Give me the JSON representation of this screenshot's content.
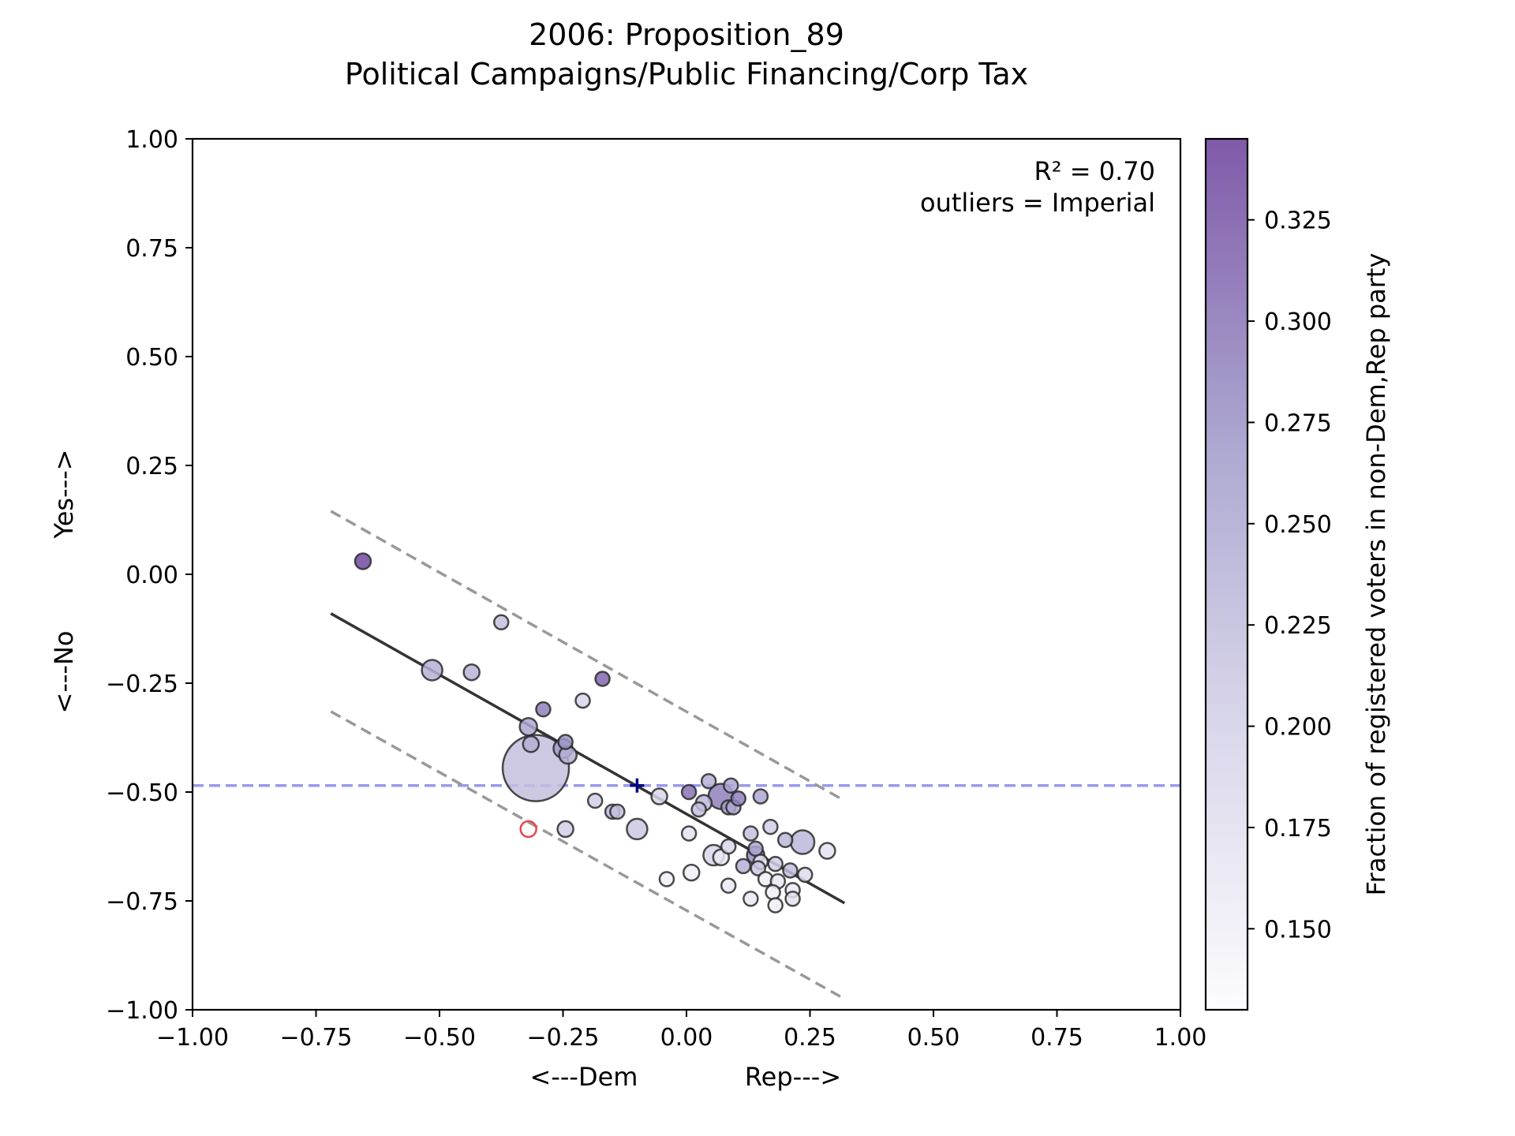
{
  "chart_data": {
    "type": "scatter",
    "title": "2006: Proposition_89",
    "subtitle": "Political Campaigns/Public Financing/Corp Tax",
    "xlabel_left": "<---Dem",
    "xlabel_right": "Rep--->",
    "ylabel_bottom": "<---No",
    "ylabel_top": "Yes--->",
    "xlim": [
      -1.0,
      1.0
    ],
    "ylim": [
      -1.0,
      1.0
    ],
    "xticks": [
      -1.0,
      -0.75,
      -0.5,
      -0.25,
      0.0,
      0.25,
      0.5,
      0.75,
      1.0
    ],
    "yticks": [
      -1.0,
      -0.75,
      -0.5,
      -0.25,
      0.0,
      0.25,
      0.5,
      0.75,
      1.0
    ],
    "xtick_labels": [
      "−1.00",
      "−0.75",
      "−0.50",
      "−0.25",
      "0.00",
      "0.25",
      "0.50",
      "0.75",
      "1.00"
    ],
    "ytick_labels": [
      "−1.00",
      "−0.75",
      "−0.50",
      "−0.25",
      "0.00",
      "0.25",
      "0.50",
      "0.75",
      "1.00"
    ],
    "annotation_r2": "R² = 0.70",
    "annotation_outliers": "outliers = Imperial",
    "colorbar": {
      "label": "Fraction of registered voters in non-Dem,Rep party",
      "range": [
        0.13,
        0.345
      ],
      "ticks": [
        0.15,
        0.175,
        0.2,
        0.225,
        0.25,
        0.275,
        0.3,
        0.325
      ],
      "tick_labels": [
        "0.150",
        "0.175",
        "0.200",
        "0.225",
        "0.250",
        "0.275",
        "0.300",
        "0.325"
      ],
      "color_low": "#fcfbfd",
      "color_high": "#6a3d9a"
    },
    "reference_line_y": -0.485,
    "reference_line_color": "#9999ee",
    "fit_line": {
      "x": [
        -0.72,
        0.32
      ],
      "y": [
        -0.09,
        -0.755
      ],
      "color": "#333333"
    },
    "upper_band": {
      "x": [
        -0.72,
        0.32
      ],
      "y": [
        0.145,
        -0.52
      ],
      "color": "#999999"
    },
    "lower_band": {
      "x": [
        -0.72,
        0.32
      ],
      "y": [
        -0.315,
        -0.975
      ],
      "color": "#999999"
    },
    "mean_marker": {
      "x": -0.1,
      "y": -0.485,
      "color": "#00008b"
    },
    "outliers": [
      {
        "x": -0.32,
        "y": -0.585,
        "color": "#e8474c"
      }
    ],
    "points": [
      {
        "x": -0.655,
        "y": 0.03,
        "size": 10,
        "c": 0.335
      },
      {
        "x": -0.375,
        "y": -0.11,
        "size": 9,
        "c": 0.22
      },
      {
        "x": -0.515,
        "y": -0.22,
        "size": 13,
        "c": 0.24
      },
      {
        "x": -0.435,
        "y": -0.225,
        "size": 10,
        "c": 0.235
      },
      {
        "x": -0.17,
        "y": -0.24,
        "size": 9,
        "c": 0.31
      },
      {
        "x": -0.21,
        "y": -0.29,
        "size": 9,
        "c": 0.19
      },
      {
        "x": -0.29,
        "y": -0.31,
        "size": 9,
        "c": 0.29
      },
      {
        "x": -0.32,
        "y": -0.35,
        "size": 11,
        "c": 0.25
      },
      {
        "x": -0.315,
        "y": -0.39,
        "size": 10,
        "c": 0.24
      },
      {
        "x": -0.245,
        "y": -0.385,
        "size": 9,
        "c": 0.27
      },
      {
        "x": -0.25,
        "y": -0.4,
        "size": 12,
        "c": 0.265
      },
      {
        "x": -0.24,
        "y": -0.415,
        "size": 11,
        "c": 0.24
      },
      {
        "x": -0.305,
        "y": -0.445,
        "size": 42,
        "c": 0.22
      },
      {
        "x": -0.185,
        "y": -0.52,
        "size": 9,
        "c": 0.2
      },
      {
        "x": -0.15,
        "y": -0.545,
        "size": 9,
        "c": 0.23
      },
      {
        "x": -0.14,
        "y": -0.545,
        "size": 9,
        "c": 0.22
      },
      {
        "x": -0.245,
        "y": -0.585,
        "size": 10,
        "c": 0.2
      },
      {
        "x": -0.1,
        "y": -0.585,
        "size": 13,
        "c": 0.21
      },
      {
        "x": -0.055,
        "y": -0.51,
        "size": 10,
        "c": 0.19
      },
      {
        "x": 0.005,
        "y": -0.5,
        "size": 9,
        "c": 0.3
      },
      {
        "x": 0.045,
        "y": -0.475,
        "size": 9,
        "c": 0.24
      },
      {
        "x": 0.025,
        "y": -0.54,
        "size": 9,
        "c": 0.22
      },
      {
        "x": 0.035,
        "y": -0.525,
        "size": 10,
        "c": 0.23
      },
      {
        "x": 0.07,
        "y": -0.51,
        "size": 16,
        "c": 0.29
      },
      {
        "x": 0.09,
        "y": -0.485,
        "size": 9,
        "c": 0.25
      },
      {
        "x": 0.085,
        "y": -0.535,
        "size": 9,
        "c": 0.26
      },
      {
        "x": 0.095,
        "y": -0.535,
        "size": 9,
        "c": 0.25
      },
      {
        "x": 0.105,
        "y": -0.515,
        "size": 9,
        "c": 0.29
      },
      {
        "x": 0.15,
        "y": -0.51,
        "size": 9,
        "c": 0.25
      },
      {
        "x": 0.005,
        "y": -0.595,
        "size": 9,
        "c": 0.17
      },
      {
        "x": 0.085,
        "y": -0.625,
        "size": 9,
        "c": 0.19
      },
      {
        "x": 0.055,
        "y": -0.645,
        "size": 13,
        "c": 0.19
      },
      {
        "x": 0.07,
        "y": -0.65,
        "size": 10,
        "c": 0.16
      },
      {
        "x": 0.13,
        "y": -0.595,
        "size": 9,
        "c": 0.22
      },
      {
        "x": 0.14,
        "y": -0.63,
        "size": 9,
        "c": 0.25
      },
      {
        "x": 0.14,
        "y": -0.645,
        "size": 11,
        "c": 0.28
      },
      {
        "x": 0.15,
        "y": -0.66,
        "size": 9,
        "c": 0.17
      },
      {
        "x": 0.17,
        "y": -0.58,
        "size": 9,
        "c": 0.2
      },
      {
        "x": 0.2,
        "y": -0.61,
        "size": 9,
        "c": 0.23
      },
      {
        "x": 0.235,
        "y": -0.615,
        "size": 15,
        "c": 0.23
      },
      {
        "x": 0.285,
        "y": -0.635,
        "size": 10,
        "c": 0.17
      },
      {
        "x": 0.115,
        "y": -0.67,
        "size": 9,
        "c": 0.24
      },
      {
        "x": 0.145,
        "y": -0.675,
        "size": 9,
        "c": 0.21
      },
      {
        "x": 0.18,
        "y": -0.665,
        "size": 9,
        "c": 0.2
      },
      {
        "x": 0.21,
        "y": -0.68,
        "size": 9,
        "c": 0.22
      },
      {
        "x": 0.24,
        "y": -0.69,
        "size": 9,
        "c": 0.18
      },
      {
        "x": 0.16,
        "y": -0.7,
        "size": 9,
        "c": 0.15
      },
      {
        "x": 0.185,
        "y": -0.705,
        "size": 9,
        "c": 0.16
      },
      {
        "x": 0.215,
        "y": -0.725,
        "size": 9,
        "c": 0.16
      },
      {
        "x": 0.175,
        "y": -0.73,
        "size": 9,
        "c": 0.15
      },
      {
        "x": -0.04,
        "y": -0.7,
        "size": 9,
        "c": 0.15
      },
      {
        "x": 0.01,
        "y": -0.685,
        "size": 10,
        "c": 0.15
      },
      {
        "x": 0.085,
        "y": -0.715,
        "size": 9,
        "c": 0.16
      },
      {
        "x": 0.13,
        "y": -0.745,
        "size": 9,
        "c": 0.16
      },
      {
        "x": 0.215,
        "y": -0.745,
        "size": 9,
        "c": 0.17
      },
      {
        "x": 0.18,
        "y": -0.76,
        "size": 9,
        "c": 0.15
      }
    ]
  }
}
